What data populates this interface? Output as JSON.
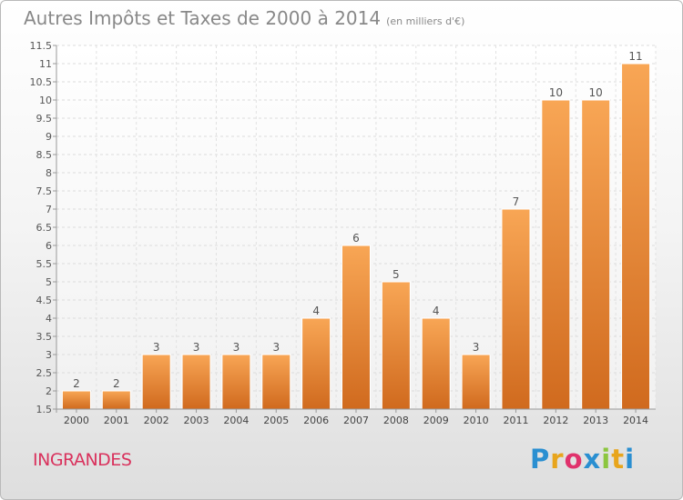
{
  "title": "Autres Impôts et Taxes de 2000 à 2014",
  "subtitle": "(en milliers d'€)",
  "commune": "INGRANDES",
  "brand": [
    "P",
    "r",
    "o",
    "x",
    "i",
    "t",
    "i"
  ],
  "brand_colors": [
    "#2a8fd1",
    "#e8a51c",
    "#e0326c",
    "#2a8fd1",
    "#8cc63f",
    "#e8a51c",
    "#2a8fd1"
  ],
  "chart_data": {
    "type": "bar",
    "categories": [
      "2000",
      "2001",
      "2002",
      "2003",
      "2004",
      "2005",
      "2006",
      "2007",
      "2008",
      "2009",
      "2010",
      "2011",
      "2012",
      "2013",
      "2014"
    ],
    "values": [
      2,
      2,
      3,
      3,
      3,
      3,
      4,
      6,
      5,
      4,
      3,
      7,
      10,
      10,
      11
    ],
    "data_labels": [
      "2",
      "2",
      "3",
      "3",
      "3",
      "3",
      "4",
      "6",
      "5",
      "4",
      "3",
      "7",
      "10",
      "10",
      "11"
    ],
    "ylim": [
      1.5,
      11.5
    ],
    "yticks": [
      "1.5",
      "2",
      "2.5",
      "3",
      "3.5",
      "4",
      "4.5",
      "5",
      "5.5",
      "6",
      "6.5",
      "7",
      "7.5",
      "8",
      "8.5",
      "9",
      "9.5",
      "10",
      "10.5",
      "11",
      "11.5"
    ],
    "grid": true,
    "bar_color": "#f0913a",
    "xlabel": "",
    "ylabel": ""
  }
}
